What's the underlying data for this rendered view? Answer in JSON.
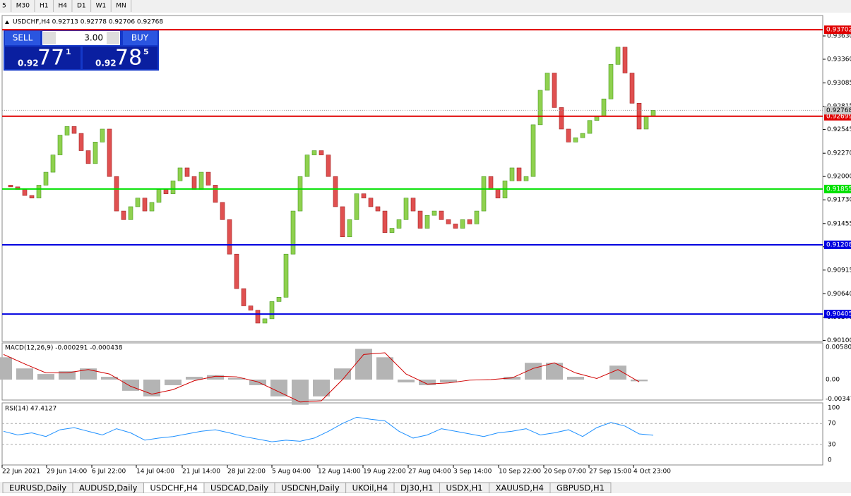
{
  "toolbar": {
    "timeframes": [
      "5",
      "M30",
      "H1",
      "H4",
      "D1",
      "W1",
      "MN"
    ]
  },
  "trade_panel": {
    "sell": "SELL",
    "lots": "3.00",
    "buy": "BUY",
    "sell_big": "0.92",
    "sell_pips": "77",
    "sell_frac": "1",
    "buy_big": "0.92",
    "buy_pips": "78",
    "buy_frac": "5"
  },
  "chart_data": {
    "type": "candlestick",
    "title": "USDCHF,H4 0.92713 0.92778 0.92706 0.92768",
    "ylim": [
      0.90087,
      0.93867
    ],
    "yticks": [
      {
        "value": 0.9363,
        "label": "0.93630"
      },
      {
        "value": 0.9336,
        "label": "0.93360"
      },
      {
        "value": 0.93085,
        "label": "0.93085"
      },
      {
        "value": 0.92815,
        "label": "0.92815"
      },
      {
        "value": 0.92545,
        "label": "0.92545"
      },
      {
        "value": 0.9227,
        "label": "0.92270"
      },
      {
        "value": 0.92,
        "label": "0.92000"
      },
      {
        "value": 0.9173,
        "label": "0.91730"
      },
      {
        "value": 0.91455,
        "label": "0.91455"
      },
      {
        "value": 0.91185,
        "label": "0.91185"
      },
      {
        "value": 0.90915,
        "label": "0.90915"
      },
      {
        "value": 0.9064,
        "label": "0.90640"
      },
      {
        "value": 0.9037,
        "label": "0.90370"
      },
      {
        "value": 0.901,
        "label": "0.90100"
      }
    ],
    "levels": [
      {
        "value": 0.93702,
        "label": "0.93702",
        "color": "#e00000"
      },
      {
        "value": 0.92699,
        "label": "0.92699",
        "color": "#e00000"
      },
      {
        "value": 0.91855,
        "label": "0.91855",
        "color": "#00e000"
      },
      {
        "value": 0.91208,
        "label": "0.91208",
        "color": "#0000e0"
      },
      {
        "value": 0.90405,
        "label": "0.90405",
        "color": "#0000e0"
      }
    ],
    "current": {
      "value": 0.92768,
      "label": "0.92768"
    },
    "closes": [
      0.919,
      0.9188,
      0.9185,
      0.9178,
      0.9175,
      0.919,
      0.9205,
      0.9225,
      0.9248,
      0.9258,
      0.925,
      0.923,
      0.9215,
      0.924,
      0.9255,
      0.92,
      0.916,
      0.915,
      0.9165,
      0.9175,
      0.916,
      0.917,
      0.9185,
      0.918,
      0.9195,
      0.921,
      0.92,
      0.9185,
      0.9205,
      0.919,
      0.917,
      0.915,
      0.911,
      0.907,
      0.905,
      0.9045,
      0.903,
      0.9035,
      0.9055,
      0.906,
      0.911,
      0.916,
      0.92,
      0.9225,
      0.923,
      0.9225,
      0.92,
      0.9165,
      0.913,
      0.915,
      0.918,
      0.9175,
      0.9165,
      0.916,
      0.9135,
      0.914,
      0.915,
      0.9175,
      0.916,
      0.914,
      0.9155,
      0.916,
      0.915,
      0.9145,
      0.914,
      0.915,
      0.9145,
      0.916,
      0.92,
      0.9185,
      0.9175,
      0.9195,
      0.921,
      0.9195,
      0.92,
      0.926,
      0.93,
      0.932,
      0.928,
      0.9255,
      0.924,
      0.9245,
      0.925,
      0.9265,
      0.927,
      0.929,
      0.933,
      0.935,
      0.932,
      0.9285,
      0.9255,
      0.927,
      0.92768
    ],
    "x_labels": [
      "22 Jun 2021",
      "29 Jun 14:00",
      "6 Jul 22:00",
      "14 Jul 04:00",
      "21 Jul 14:00",
      "28 Jul 22:00",
      "5 Aug 04:00",
      "12 Aug 14:00",
      "19 Aug 22:00",
      "27 Aug 04:00",
      "3 Sep 14:00",
      "10 Sep 22:00",
      "20 Sep 07:00",
      "27 Sep 15:00",
      "4 Oct 23:00"
    ]
  },
  "macd": {
    "title": "MACD(12,26,9) -0.000291 -0.000438",
    "ylim": [
      -0.00366,
      0.00657
    ],
    "yticks": [
      {
        "value": 0.005809,
        "label": "0.005809"
      },
      {
        "value": 0,
        "label": "0.00"
      },
      {
        "value": -0.00347,
        "label": "-0.00347"
      }
    ],
    "histogram": [
      0.004,
      0.002,
      0.001,
      0.0015,
      0.002,
      0.0005,
      -0.002,
      -0.003,
      -0.001,
      0.0005,
      0.0008,
      0.0003,
      -0.001,
      -0.003,
      -0.0045,
      -0.003,
      0.002,
      0.0055,
      0.004,
      -0.0005,
      -0.001,
      -0.0005,
      0,
      0,
      0.0005,
      0.003,
      0.003,
      0.0005,
      0,
      0.0025,
      -0.0003
    ],
    "signal": [
      0.0045,
      0.0028,
      0.0012,
      0.0012,
      0.0018,
      0.001,
      -0.0012,
      -0.0026,
      -0.0018,
      -0.0002,
      0.0006,
      0.0005,
      -0.0004,
      -0.0022,
      -0.004,
      -0.0038,
      0,
      0.0045,
      0.0048,
      0.001,
      -0.0008,
      -0.0006,
      -0.0001,
      0,
      0.0003,
      0.002,
      0.003,
      0.0012,
      0.0002,
      0.0018,
      -0.0004
    ]
  },
  "rsi": {
    "title": "RSI(14) 47.4127",
    "ylim": [
      -9.5,
      109.5
    ],
    "yticks": [
      100,
      70,
      30,
      0
    ],
    "levels": [
      70,
      30
    ],
    "values": [
      55,
      48,
      52,
      45,
      58,
      62,
      55,
      48,
      60,
      52,
      38,
      42,
      45,
      50,
      55,
      58,
      52,
      45,
      40,
      35,
      38,
      36,
      42,
      55,
      70,
      82,
      78,
      75,
      55,
      42,
      48,
      60,
      55,
      50,
      45,
      52,
      55,
      60,
      48,
      52,
      58,
      45,
      62,
      72,
      65,
      50,
      47.4127
    ]
  },
  "tabs": [
    "EURUSD,Daily",
    "AUDUSD,Daily",
    "USDCHF,H4",
    "USDCAD,Daily",
    "USDCNH,Daily",
    "UKOil,H4",
    "DJ30,H1",
    "USDX,H1",
    "XAUUSD,H4",
    "GBPUSD,H1"
  ],
  "active_tab": 2
}
